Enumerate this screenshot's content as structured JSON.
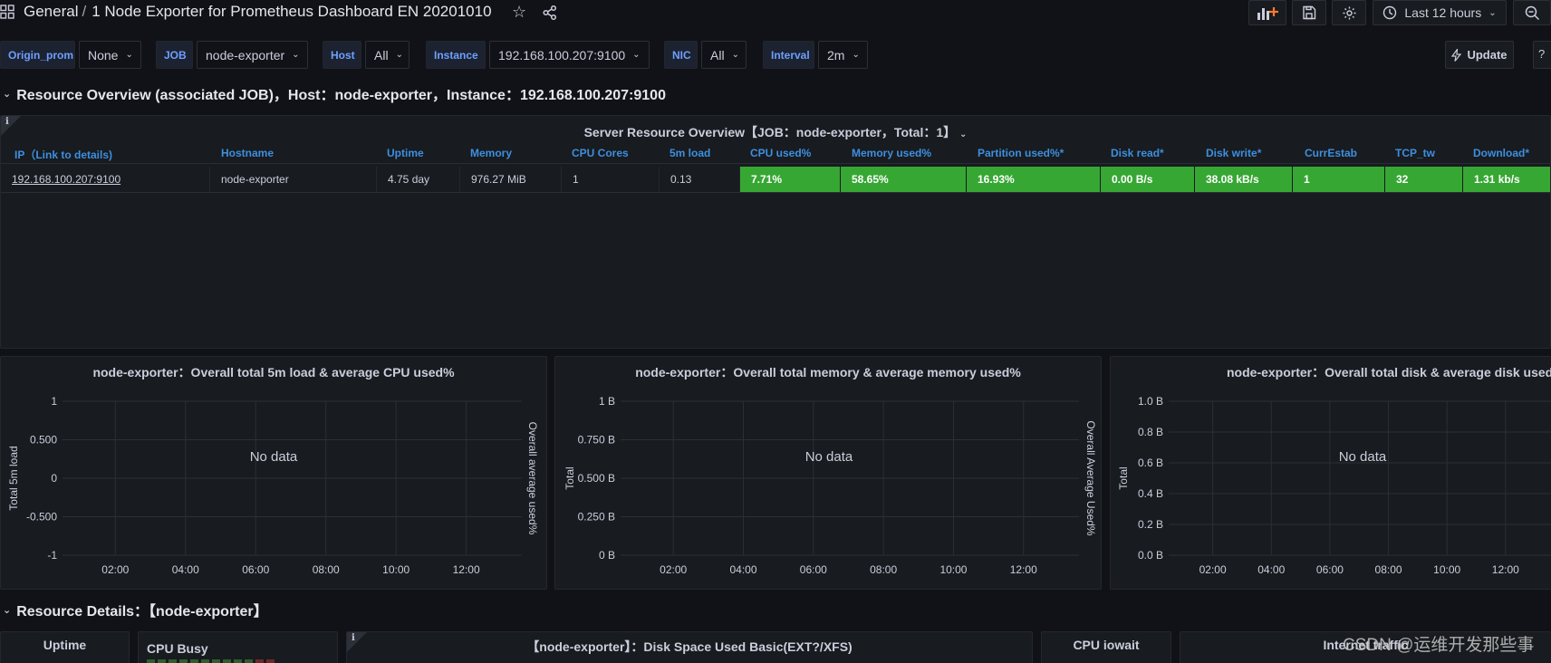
{
  "nav": {
    "folder": "General",
    "dashboard_title": "1 Node Exporter for Prometheus Dashboard EN 20201010",
    "time_range": "Last 12 hours"
  },
  "variables": [
    {
      "label": "Origin_prom",
      "value": "None"
    },
    {
      "label": "JOB",
      "value": "node-exporter"
    },
    {
      "label": "Host",
      "value": "All"
    },
    {
      "label": "Instance",
      "value": "192.168.100.207:9100"
    },
    {
      "label": "NIC",
      "value": "All"
    },
    {
      "label": "Interval",
      "value": "2m"
    }
  ],
  "update_label": "Update",
  "row1": {
    "title": "Resource Overview (associated JOB)，Host：node-exporter，Instance：192.168.100.207:9100"
  },
  "overview_panel": {
    "title": "Server Resource Overview【JOB：node-exporter，Total：1】",
    "info": "i",
    "columns": [
      "IP（Link to details)",
      "Hostname",
      "Uptime",
      "Memory",
      "CPU Cores",
      "5m load",
      "CPU used%",
      "Memory used%",
      "Partition used%*",
      "Disk read*",
      "Disk write*",
      "CurrEstab",
      "TCP_tw",
      "Download*"
    ],
    "row": [
      "192.168.100.207:9100",
      "node-exporter",
      "4.75 day",
      "976.27 MiB",
      "1",
      "0.13",
      "7.71%",
      "58.65%",
      "16.93%",
      "0.00 B/s",
      "38.08 kB/s",
      "1",
      "32",
      "1.31 kb/s"
    ]
  },
  "charts": [
    {
      "title": "node-exporter：Overall total 5m load & average CPU used%",
      "no_data": "No data",
      "chart_data": {
        "type": "line",
        "series": [],
        "y_ticks": [
          "1",
          "0.500",
          "0",
          "-0.500",
          "-1"
        ],
        "x_ticks": [
          "02:00",
          "04:00",
          "06:00",
          "08:00",
          "10:00",
          "12:00"
        ],
        "ylabel": "Total 5m load",
        "y2label": "Overall average used%",
        "ylim": [
          -1,
          1
        ]
      }
    },
    {
      "title": "node-exporter：Overall total memory & average memory used%",
      "no_data": "No data",
      "chart_data": {
        "type": "line",
        "series": [],
        "y_ticks": [
          "1 B",
          "0.750 B",
          "0.500 B",
          "0.250 B",
          "0 B"
        ],
        "x_ticks": [
          "02:00",
          "04:00",
          "06:00",
          "08:00",
          "10:00",
          "12:00"
        ],
        "ylabel": "Total",
        "y2label": "Overall Average Used%",
        "ylim": [
          0,
          1
        ]
      }
    },
    {
      "title": "node-exporter：Overall total disk & average disk used%",
      "no_data": "No data",
      "chart_data": {
        "type": "line",
        "series": [],
        "y_ticks": [
          "1.0 B",
          "0.8 B",
          "0.6 B",
          "0.4 B",
          "0.2 B",
          "0.0 B"
        ],
        "x_ticks": [
          "02:00",
          "04:00",
          "06:00",
          "08:00",
          "10:00",
          "12:00"
        ],
        "ylabel": "Total",
        "y2label": "",
        "ylim": [
          0,
          1
        ]
      }
    }
  ],
  "row2": {
    "title": "Resource Details：【node-exporter】"
  },
  "detail_panels": {
    "uptime": "Uptime",
    "cpu_busy": "CPU Busy",
    "disk_space": "【node-exporter】：Disk Space Used Basic(EXT?/XFS)",
    "cpu_iowait": "CPU iowait",
    "internet": "Internet traffic"
  },
  "watermark": "CSDN @运维开发那些事",
  "colors": {
    "bg": "#111217",
    "panel": "#181b1f",
    "green": "#37a734",
    "link": "#3d8fe0",
    "label": "#6e9fff"
  }
}
